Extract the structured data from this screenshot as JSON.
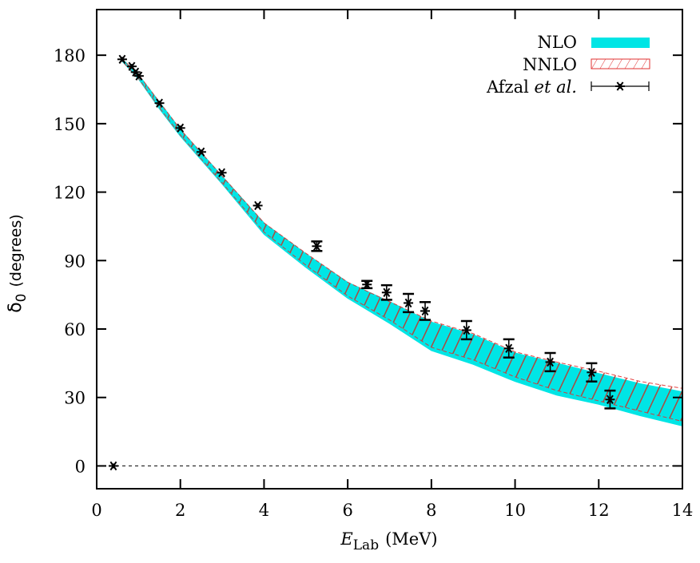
{
  "chart_data": {
    "type": "scatter",
    "title": "",
    "xlabel": "E_Lab (MeV)",
    "xlabel_parts": {
      "main": "E",
      "sub": "Lab",
      "unit": "(MeV)"
    },
    "ylabel": "δ_0 (degrees)",
    "ylabel_parts": {
      "main": "δ",
      "sub": "0",
      "unit": "(degrees)"
    },
    "xlim": [
      0,
      14
    ],
    "ylim": [
      -10,
      200
    ],
    "xticks": [
      0,
      2,
      4,
      6,
      8,
      10,
      12,
      14
    ],
    "yticks": [
      0,
      30,
      60,
      90,
      120,
      150,
      180
    ],
    "zero_line": true,
    "grid": false,
    "legend": {
      "position": "top-right",
      "entries": [
        {
          "label": "NLO",
          "style": "filled-band",
          "color": "#00e5e5"
        },
        {
          "label": "NNLO",
          "style": "hatched-band",
          "color": "#d62a2a"
        },
        {
          "label": "Afzal",
          "label_italic": "et al.",
          "style": "points-with-errorbars",
          "color": "#000000"
        }
      ]
    },
    "series": [
      {
        "name": "NLO",
        "type": "band",
        "color": "#00e5e5",
        "x": [
          0.6,
          1.0,
          1.5,
          2.0,
          3.0,
          4.0,
          5.0,
          6.0,
          7.0,
          8.0,
          9.0,
          10.0,
          11.0,
          12.0,
          13.0,
          14.0
        ],
        "lower": [
          177.5,
          169.5,
          156.5,
          144.5,
          123.5,
          101.5,
          87.0,
          73.5,
          62.5,
          50.5,
          44.5,
          37.0,
          31.0,
          27.0,
          22.0,
          17.5
        ],
        "upper": [
          178.5,
          171.5,
          159.5,
          147.5,
          127.0,
          106.5,
          93.0,
          80.5,
          72.0,
          63.0,
          57.5,
          49.5,
          45.0,
          40.5,
          36.0,
          32.5
        ]
      },
      {
        "name": "NNLO",
        "type": "band",
        "color": "#d62a2a",
        "x": [
          0.6,
          1.0,
          1.5,
          2.0,
          3.0,
          4.0,
          5.0,
          6.0,
          7.0,
          8.0,
          9.0,
          10.0,
          11.0,
          12.0,
          13.0,
          14.0
        ],
        "lower": [
          177.5,
          169.8,
          157.0,
          145.0,
          124.0,
          102.5,
          88.0,
          74.5,
          64.0,
          52.0,
          46.5,
          39.0,
          33.0,
          28.5,
          24.0,
          19.5
        ],
        "upper": [
          178.5,
          171.5,
          159.5,
          147.5,
          127.0,
          106.5,
          93.2,
          80.5,
          72.0,
          63.5,
          58.0,
          50.0,
          45.5,
          41.5,
          37.0,
          34.0
        ]
      },
      {
        "name": "Afzal et al.",
        "type": "scatter",
        "marker": "asterisk",
        "color": "#000000",
        "x": [
          0.4,
          0.61,
          0.84,
          0.93,
          1.01,
          1.5,
          2.0,
          2.5,
          2.99,
          3.85,
          5.26,
          6.46,
          6.93,
          7.45,
          7.85,
          8.84,
          9.85,
          10.84,
          11.83,
          12.27
        ],
        "y": [
          0.0,
          178.2,
          175.1,
          172.6,
          170.9,
          159.0,
          148.1,
          137.6,
          128.5,
          114.1,
          96.3,
          79.5,
          76.0,
          71.4,
          67.9,
          59.5,
          51.5,
          45.5,
          41.0,
          29.1
        ],
        "err": [
          0,
          0,
          0,
          0,
          0,
          0,
          0,
          0,
          0,
          0,
          2.1,
          1.6,
          3.2,
          4.0,
          3.9,
          4.0,
          4.0,
          4.0,
          4.0,
          3.9
        ]
      }
    ]
  }
}
